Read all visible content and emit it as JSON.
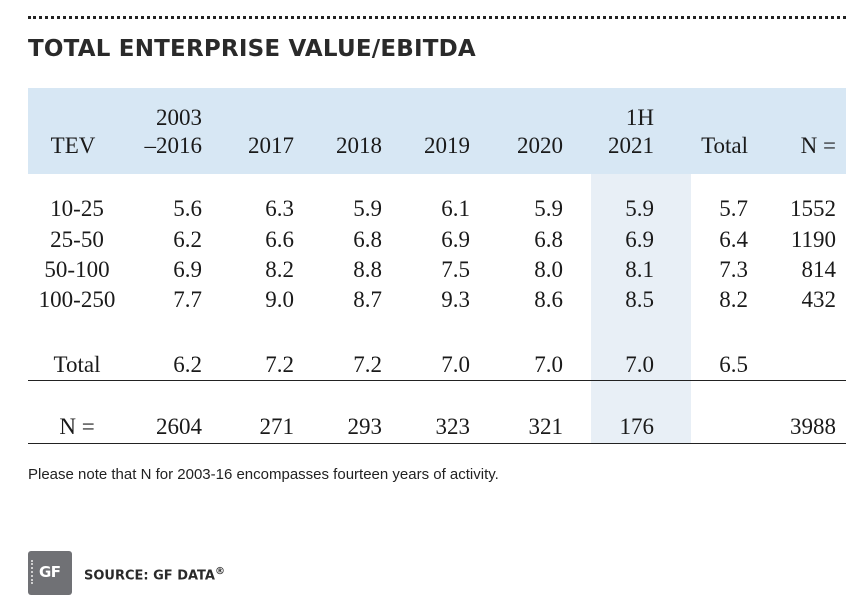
{
  "title": "TOTAL ENTERPRISE VALUE/EBITDA",
  "table": {
    "header": {
      "tev": "TEV",
      "c1_line1": "2003",
      "c1_line2": "–2016",
      "c2": "2017",
      "c3": "2018",
      "c4": "2019",
      "c5": "2020",
      "c6_line1": "1H",
      "c6_line2": "2021",
      "total": "Total",
      "n": "N ="
    },
    "rows": [
      {
        "tev": "10-25",
        "c1": "5.6",
        "c2": "6.3",
        "c3": "5.9",
        "c4": "6.1",
        "c5": "5.9",
        "c6": "5.9",
        "total": "5.7",
        "n": "1552"
      },
      {
        "tev": "25-50",
        "c1": "6.2",
        "c2": "6.6",
        "c3": "6.8",
        "c4": "6.9",
        "c5": "6.8",
        "c6": "6.9",
        "total": "6.4",
        "n": "1190"
      },
      {
        "tev": "50-100",
        "c1": "6.9",
        "c2": "8.2",
        "c3": "8.8",
        "c4": "7.5",
        "c5": "8.0",
        "c6": "8.1",
        "total": "7.3",
        "n": "814"
      },
      {
        "tev": "100-250",
        "c1": "7.7",
        "c2": "9.0",
        "c3": "8.7",
        "c4": "9.3",
        "c5": "8.6",
        "c6": "8.5",
        "total": "8.2",
        "n": "432"
      }
    ],
    "total_row": {
      "label": "Total",
      "c1": "6.2",
      "c2": "7.2",
      "c3": "7.2",
      "c4": "7.0",
      "c5": "7.0",
      "c6": "7.0",
      "total": "6.5",
      "n": ""
    },
    "n_row": {
      "label": "N =",
      "c1": "2604",
      "c2": "271",
      "c3": "293",
      "c4": "323",
      "c5": "321",
      "c6": "176",
      "total": "",
      "n": "3988"
    },
    "highlight_color": "#e8eff6",
    "header_color": "#d7e7f4"
  },
  "note": "Please note that N for 2003-16 encompasses fourteen years of activity.",
  "logo": {
    "text": "GF",
    "icon": "gf-data-logo-icon"
  },
  "source": {
    "label": "SOURCE: GF DATA",
    "mark": "®"
  }
}
